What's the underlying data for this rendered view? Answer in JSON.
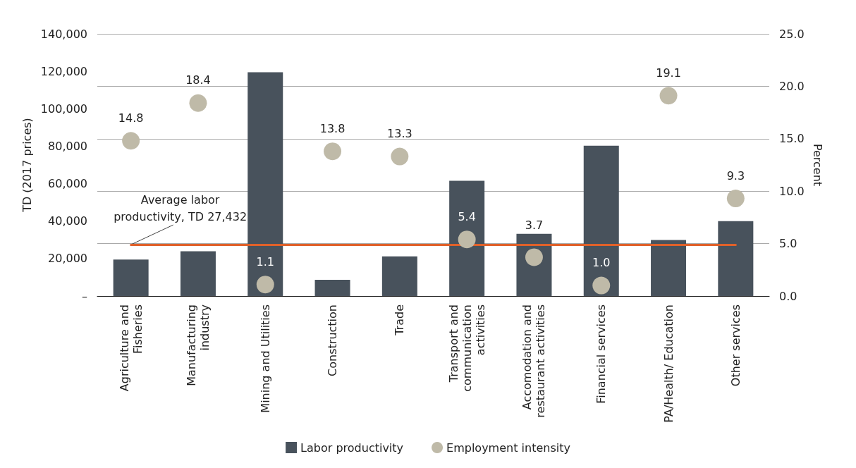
{
  "chart_data": {
    "type": "bar",
    "categories": [
      "Agriculture and Fisheries",
      "Manufacturing industry",
      "Mining and Utilities",
      "Construction",
      "Trade",
      "Transport and communication activities",
      "Accomodation and restaurant activities",
      "Financial services",
      "PA/Health/ Education",
      "Other services"
    ],
    "series": [
      {
        "name": "Labor productivity",
        "color": "#48525c",
        "values": [
          19500,
          23900,
          119500,
          8700,
          21200,
          61500,
          33200,
          80300,
          29900,
          40000
        ]
      },
      {
        "name": "Employment intensity",
        "type": "scatter",
        "axis": "y2",
        "color": "#bfbaa8",
        "values": [
          14.8,
          18.4,
          1.1,
          13.8,
          13.3,
          5.4,
          3.7,
          1.0,
          19.1,
          9.3
        ],
        "value_labels": [
          "14.8",
          "18.4",
          "1.1",
          "13.8",
          "13.3",
          "5.4",
          "3.7",
          "1.0",
          "19.1",
          "9.3"
        ]
      }
    ],
    "ylabel": "TD (2017 prices)",
    "y2label": "Percent",
    "ylim": [
      0,
      140000
    ],
    "yticks": [
      {
        "value": 0,
        "label": "–"
      },
      {
        "value": 20000,
        "label": "20,000"
      },
      {
        "value": 40000,
        "label": "40,000"
      },
      {
        "value": 60000,
        "label": "60,000"
      },
      {
        "value": 80000,
        "label": "80,000"
      },
      {
        "value": 100000,
        "label": "100,000"
      },
      {
        "value": 120000,
        "label": "120,000"
      },
      {
        "value": 140000,
        "label": "140,000"
      }
    ],
    "y2lim": [
      0,
      25
    ],
    "y2ticks": [
      {
        "value": 0,
        "label": "0.0"
      },
      {
        "value": 5,
        "label": "5.0"
      },
      {
        "value": 10,
        "label": "10.0"
      },
      {
        "value": 15,
        "label": "15.0"
      },
      {
        "value": 20,
        "label": "20.0"
      },
      {
        "value": 25,
        "label": "25.0"
      }
    ],
    "ref_lines": [
      {
        "axis": "y",
        "value": 27432,
        "label": "Average labor productivity, TD 27,432",
        "color": "#e0612a"
      }
    ],
    "grid": "y",
    "marker": "circle",
    "legend": "bottom"
  }
}
